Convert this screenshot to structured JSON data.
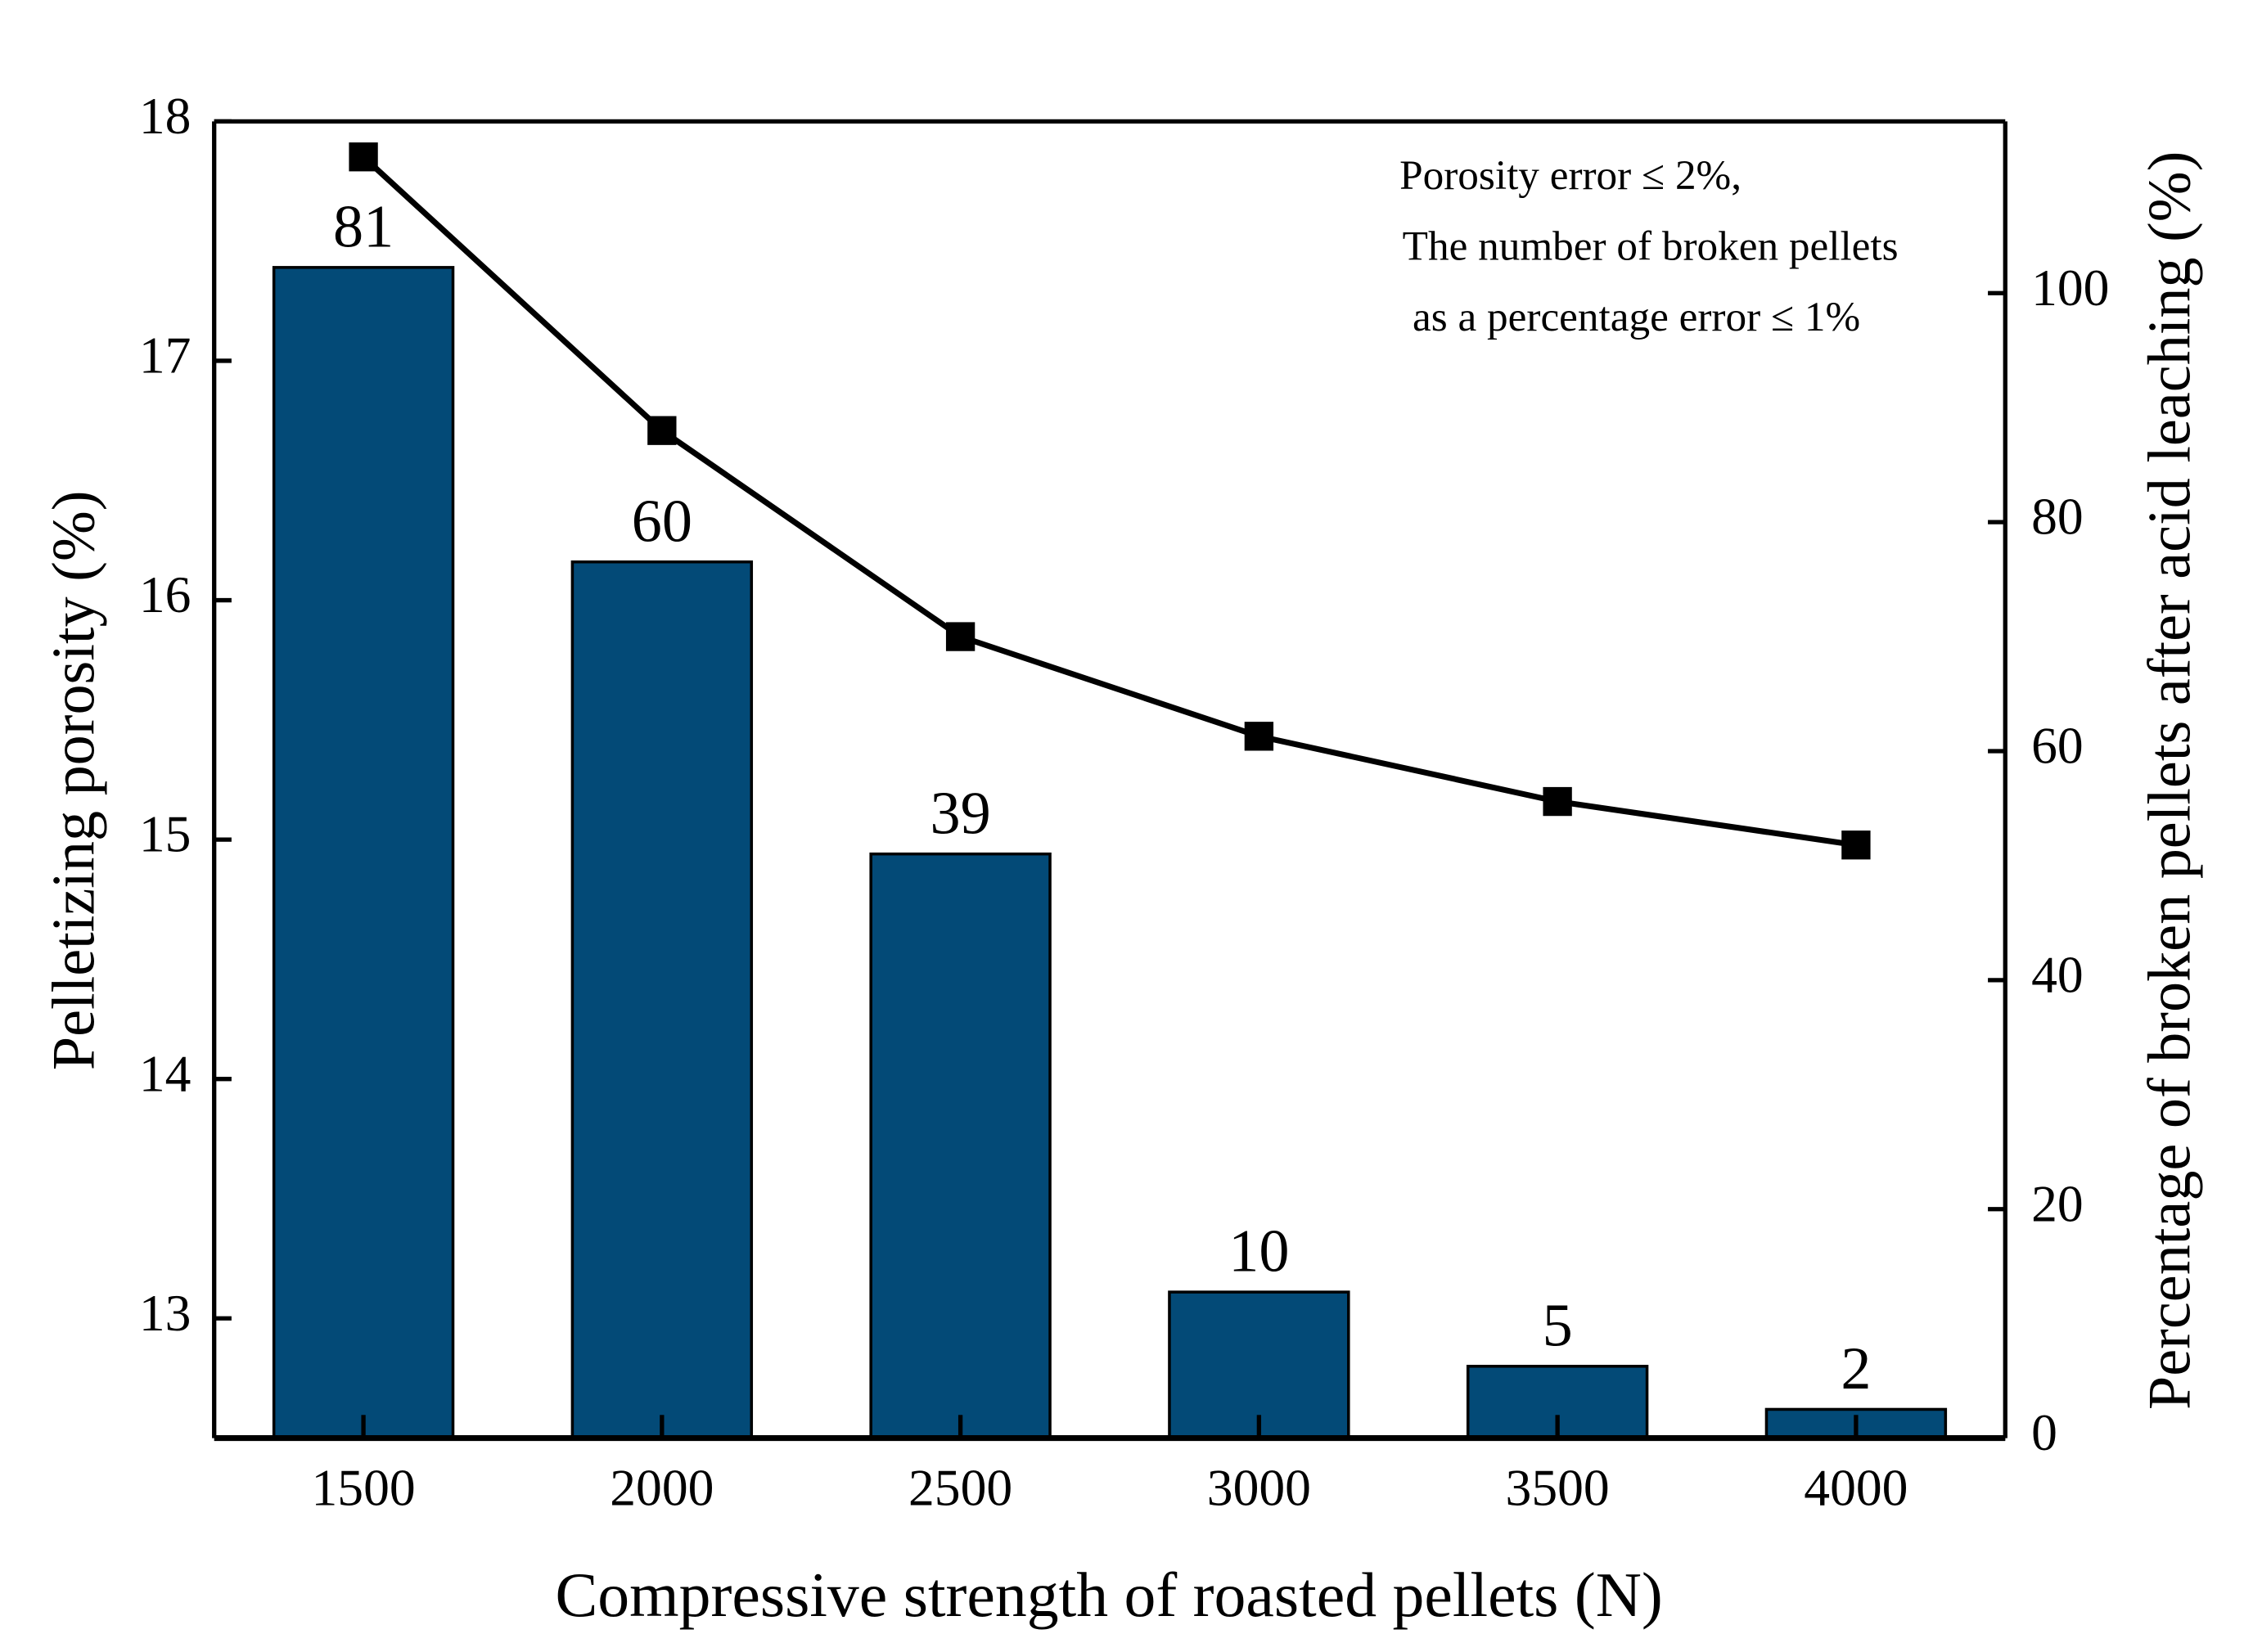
{
  "chart_data": {
    "type": "bar-line",
    "x_label": "Compressive strength of roasted pellets (N)",
    "y_label": "Pelletizing porosity (%)",
    "y2_label": "Percentage of broken pellets after acid leaching (%)",
    "categories": [
      "1500",
      "2000",
      "2500",
      "3000",
      "3500",
      "4000"
    ],
    "series": [
      {
        "name": "Pelletizing porosity",
        "type": "bar",
        "color": "#034a77",
        "values": [
          17.39,
          16.16,
          14.94,
          13.11,
          12.8,
          12.62
        ]
      },
      {
        "name": "Percentage of broken pellets",
        "type": "line",
        "axis": "y2",
        "color": "#000000",
        "values": [
          111.9,
          88.0,
          70.0,
          61.3,
          55.6,
          51.8
        ]
      }
    ],
    "bar_labels": [
      "81",
      "60",
      "39",
      "10",
      "5",
      "2"
    ],
    "annotation": [
      "Porosity error ≤ 2%,",
      "The number of broken pellets",
      "as a percentage error ≤ 1%"
    ],
    "ylim": [
      12.5,
      18
    ],
    "yticks": [
      13,
      14,
      15,
      16,
      17,
      18
    ],
    "y2lim": [
      0,
      115
    ],
    "y2ticks": [
      0,
      20,
      40,
      60,
      80,
      100
    ]
  }
}
